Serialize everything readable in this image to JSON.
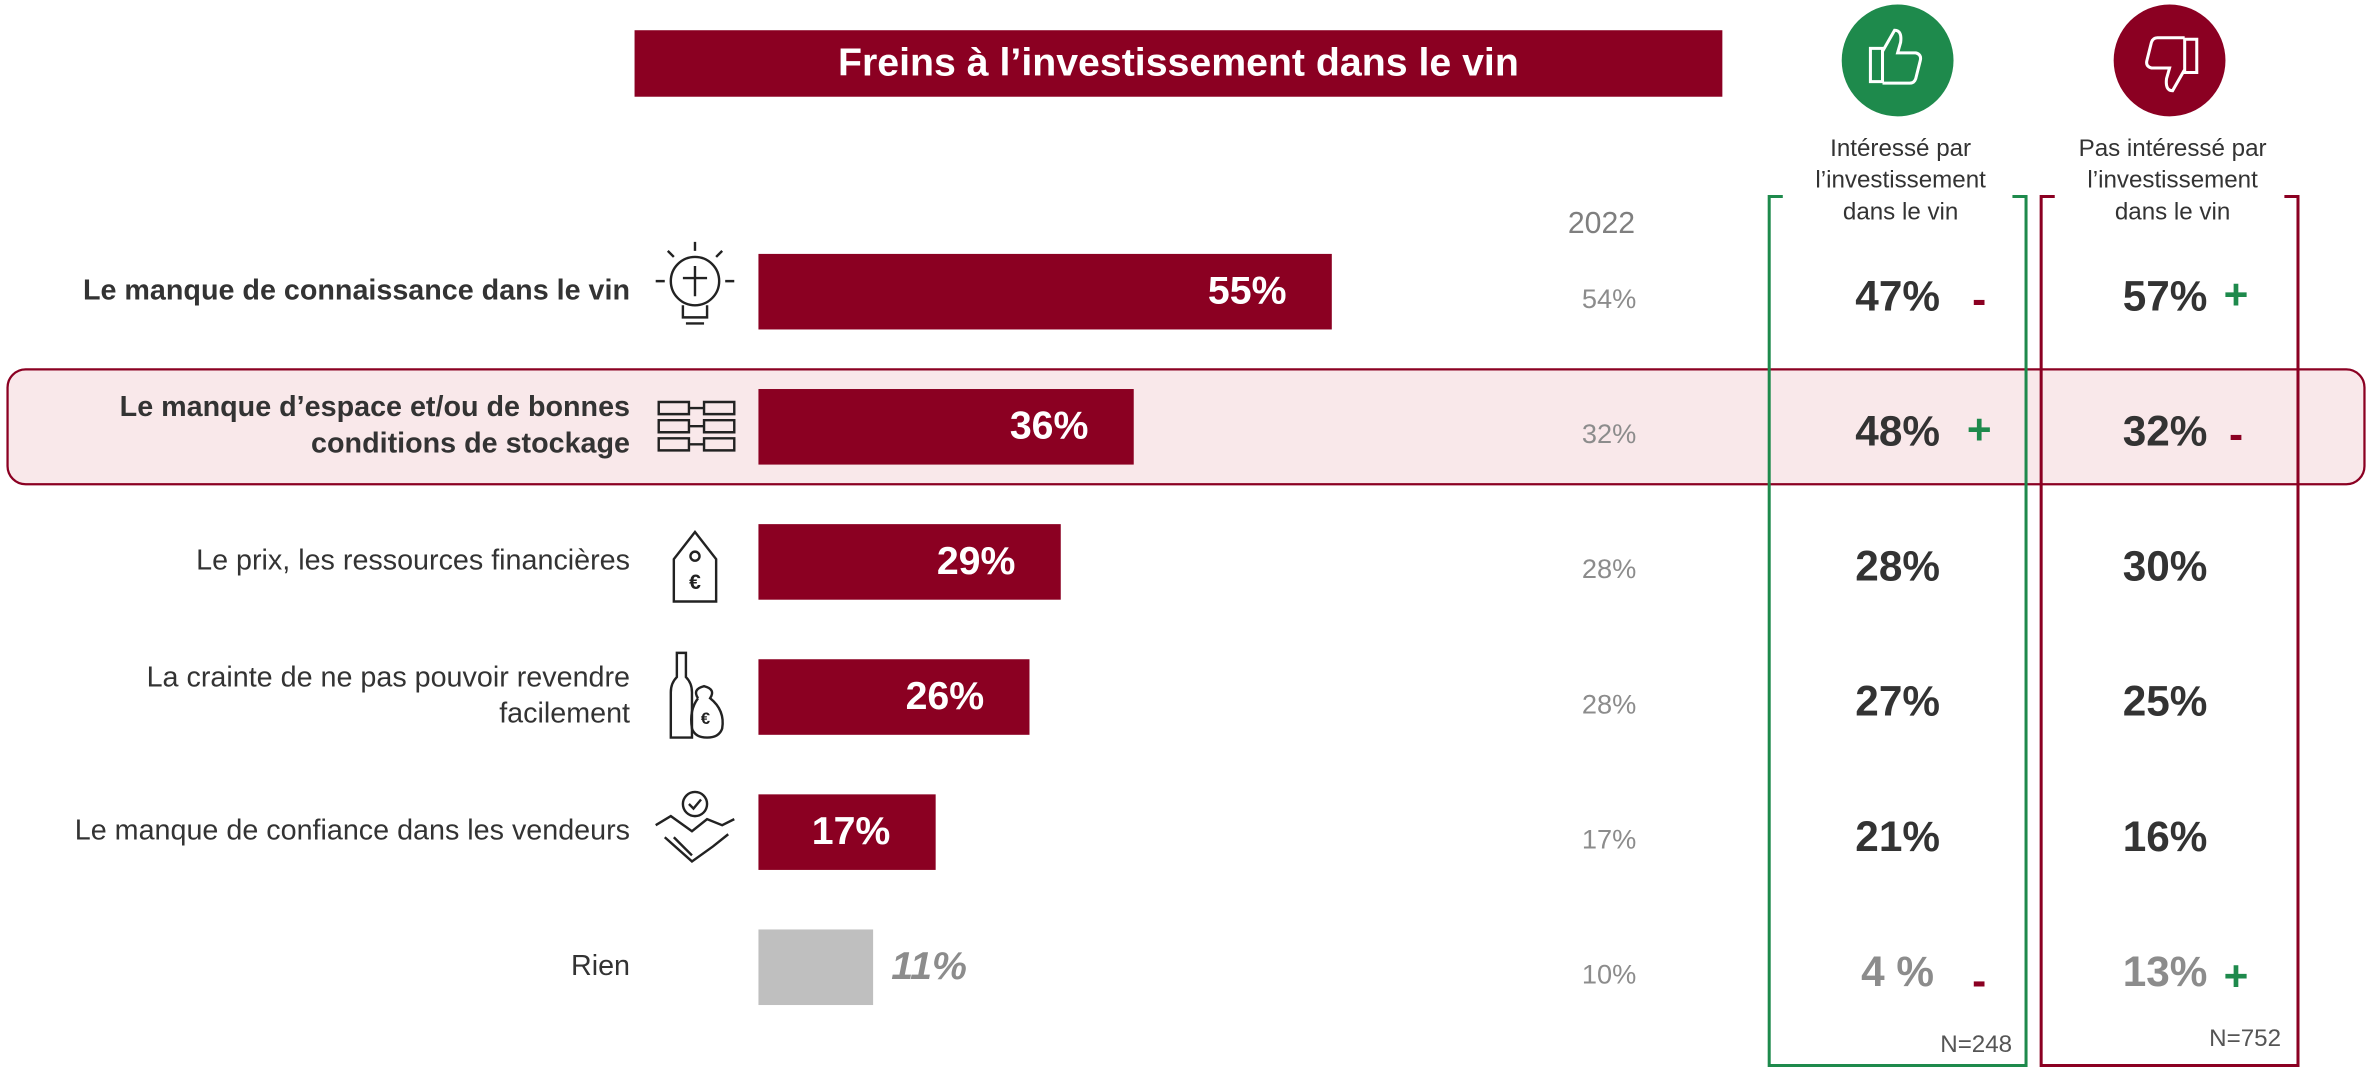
{
  "chart_data": {
    "type": "bar",
    "title": "Freins à l’investissement dans le vin",
    "categories": [
      [
        "Le manque de connaissance dans le vin"
      ],
      [
        "Le manque d’espace et/ou de bonnes",
        "conditions de stockage"
      ],
      [
        "Le prix, les ressources financières"
      ],
      [
        "La crainte de ne pas pouvoir revendre",
        "facilement"
      ],
      [
        "Le manque de confiance dans les vendeurs"
      ],
      [
        "Rien"
      ]
    ],
    "values": [
      55,
      36,
      29,
      26,
      17,
      11
    ],
    "value_labels": [
      "55%",
      "36%",
      "29%",
      "26%",
      "17%",
      "11%"
    ],
    "colors": [
      "#8b0022",
      "#8b0022",
      "#8b0022",
      "#8b0022",
      "#8b0022",
      "#bfbfbf"
    ],
    "emphasis": [
      true,
      true,
      false,
      false,
      false,
      false
    ],
    "highlight_index": 1,
    "columns": [
      {
        "header": [
          "2022"
        ],
        "labels": [
          "54%",
          "32%",
          "28%",
          "28%",
          "17%",
          "10%"
        ]
      },
      {
        "header": [
          "Intéressé par",
          "l’investissement",
          "dans le vin"
        ],
        "color": "#1e8a4c",
        "labels": [
          "47%",
          "48%",
          "28%",
          "27%",
          "21%",
          "4 %"
        ],
        "signs": [
          "-",
          "+",
          null,
          null,
          null,
          "-"
        ],
        "n": "N=248"
      },
      {
        "header": [
          "Pas intéressé par",
          "l’investissement",
          "dans le vin"
        ],
        "color": "#8b0022",
        "labels": [
          "57%",
          "32%",
          "30%",
          "25%",
          "16%",
          "13%"
        ],
        "signs": [
          "+",
          "-",
          null,
          null,
          null,
          "+"
        ],
        "n": "N=752"
      }
    ]
  }
}
